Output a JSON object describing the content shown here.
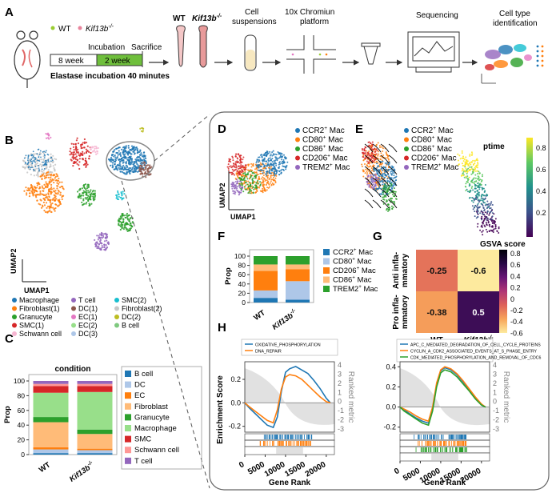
{
  "panel_labels": {
    "A": "A",
    "B": "B",
    "C": "C",
    "D": "D",
    "E": "E",
    "F": "F",
    "G": "G",
    "H": "H"
  },
  "panel_a": {
    "legend_wt": "WT",
    "legend_ko": "Kif13b",
    "ko_sup": "-/-",
    "week1": "8 week",
    "week2": "2 week",
    "incubation": "Incubation",
    "sacrifice": "Sacrifice",
    "elastase": "Elastase incubation 40 minutes",
    "step_wt": "WT",
    "step_ko": "Kif13b",
    "step_cell1": "Cell",
    "step_cell2": "suspensions",
    "step_10x1": "10x Chromiun",
    "step_10x2": "platform",
    "step_seq": "Sequencing",
    "step_id1": "Cell type",
    "step_id2": "identification",
    "colors": {
      "wt": "#9acd32",
      "ko": "#e8849c",
      "incubation": "#6fbf3c"
    }
  },
  "panel_b": {
    "xlabel": "UMAP1",
    "ylabel": "UMAP2",
    "legend": [
      {
        "label": "Macrophage",
        "color": "#1f77b4"
      },
      {
        "label": "T cell",
        "color": "#9467bd"
      },
      {
        "label": "SMC(2)",
        "color": "#17becf"
      },
      {
        "label": "Fibroblast(1)",
        "color": "#ff7f0e"
      },
      {
        "label": "DC(1)",
        "color": "#8c564b"
      },
      {
        "label": "Fibroblast(2)",
        "color": "#c7c7c7"
      },
      {
        "label": "Granucyte",
        "color": "#2ca02c"
      },
      {
        "label": "EC(1)",
        "color": "#e377c2"
      },
      {
        "label": "DC(2)",
        "color": "#bcbd22"
      },
      {
        "label": "SMC(1)",
        "color": "#d62728"
      },
      {
        "label": "EC(2)",
        "color": "#98df8a"
      },
      {
        "label": "B cell",
        "color": "#7fc97f"
      },
      {
        "label": "Schwann cell",
        "color": "#f7b6d2"
      },
      {
        "label": "DC(3)",
        "color": "#aec7e8"
      }
    ]
  },
  "chart_data": [
    {
      "type": "bar",
      "id": "C",
      "title": "condition",
      "categories": [
        "WT",
        "Kif13b"
      ],
      "ylabel": "Prop",
      "ylim": [
        0,
        100
      ],
      "yticks": [
        "0",
        "20",
        "40",
        "60",
        "80",
        "100"
      ],
      "series": [
        {
          "name": "B cell",
          "color": "#1f77b4",
          "values": [
            2,
            2
          ]
        },
        {
          "name": "DC",
          "color": "#aec7e8",
          "values": [
            5,
            4
          ]
        },
        {
          "name": "EC",
          "color": "#ff7f0e",
          "values": [
            3,
            2
          ]
        },
        {
          "name": "Fibroblast",
          "color": "#ffbb78",
          "values": [
            34,
            20
          ]
        },
        {
          "name": "Granucyte",
          "color": "#2ca02c",
          "values": [
            7,
            6
          ]
        },
        {
          "name": "Macrophage",
          "color": "#98df8a",
          "values": [
            33,
            51
          ]
        },
        {
          "name": "SMC",
          "color": "#d62728",
          "values": [
            9,
            8
          ]
        },
        {
          "name": "Schwann cell",
          "color": "#ff9896",
          "values": [
            3,
            3
          ]
        },
        {
          "name": "T cell",
          "color": "#9467bd",
          "values": [
            4,
            4
          ]
        }
      ]
    },
    {
      "type": "bar",
      "id": "F",
      "categories": [
        "WT",
        "Kif13b"
      ],
      "ylabel": "Prop",
      "ylim": [
        0,
        100
      ],
      "yticks": [
        "0",
        "20",
        "40",
        "60",
        "80",
        "100"
      ],
      "series": [
        {
          "name": "CCR2+ Mac",
          "color": "#1f77b4",
          "values": [
            10,
            6
          ]
        },
        {
          "name": "CD80+ Mac",
          "color": "#aec7e8",
          "values": [
            16,
            40
          ]
        },
        {
          "name": "CD206+ Mac",
          "color": "#ff7f0e",
          "values": [
            42,
            26
          ]
        },
        {
          "name": "CD86+ Mac",
          "color": "#ffbb78",
          "values": [
            14,
            10
          ]
        },
        {
          "name": "TREM2+ Mac",
          "color": "#2ca02c",
          "values": [
            18,
            18
          ]
        }
      ]
    },
    {
      "type": "heatmap",
      "id": "G",
      "title": "GSVA score",
      "columns": [
        "WT",
        "Kif13b"
      ],
      "rows": [
        "Anti inflammatory",
        "Pro inflammatory"
      ],
      "values": [
        [
          -0.25,
          -0.6
        ],
        [
          -0.38,
          0.5
        ]
      ],
      "cell_labels": [
        [
          "-0.25",
          "-0.6"
        ],
        [
          "-0.38",
          "0.5"
        ]
      ],
      "row_labels": [
        [
          "Anti infla-",
          "mmatory"
        ],
        [
          "Pro infla-",
          "mmatory"
        ]
      ],
      "colorbar_ticks": [
        "0.8",
        "0.6",
        "0.4",
        "0.2",
        "0",
        "-0.2",
        "-0.4",
        "-0.6"
      ],
      "range": [
        -0.6,
        0.9
      ]
    },
    {
      "type": "line",
      "id": "H1",
      "xlabel": "Gene Rank",
      "ylabel": "Enrichment Score",
      "y2label": "Ranked metric",
      "xlim": [
        0,
        22000
      ],
      "ylim": [
        -0.25,
        0.35
      ],
      "xticks": [
        "0",
        "5000",
        "10000",
        "15000",
        "20000"
      ],
      "yticks": [
        "-0.2",
        "0.0",
        "0.2"
      ],
      "y2ticks": [
        "4",
        "3",
        "2",
        "1",
        "0",
        "-1",
        "-2",
        "-3"
      ],
      "series": [
        {
          "name": "OXIDATIVE_PHOSPHORYLATION",
          "color": "#1f77b4",
          "x": [
            0,
            1000,
            2500,
            4000,
            5500,
            7000,
            8000,
            9000,
            10000,
            11000,
            12500,
            14000,
            15500,
            17000,
            18500,
            20000,
            21000
          ],
          "y": [
            0,
            -0.04,
            -0.09,
            -0.14,
            -0.19,
            -0.21,
            -0.12,
            0.1,
            0.26,
            0.29,
            0.31,
            0.28,
            0.25,
            0.19,
            0.12,
            0.04,
            0
          ]
        },
        {
          "name": "DNA_REPAIR",
          "color": "#ff7f0e",
          "x": [
            0,
            1000,
            2500,
            4000,
            5500,
            7000,
            8000,
            9000,
            10000,
            11000,
            12500,
            14000,
            15500,
            17000,
            18500,
            20000,
            21000
          ],
          "y": [
            0,
            -0.03,
            -0.07,
            -0.11,
            -0.15,
            -0.17,
            -0.06,
            0.12,
            0.22,
            0.24,
            0.23,
            0.2,
            0.15,
            0.1,
            0.05,
            0.01,
            0
          ]
        }
      ]
    },
    {
      "type": "line",
      "id": "H2",
      "xlabel": "Gene Rank",
      "ylabel": "",
      "y2label": "Ranked metric",
      "xlim": [
        0,
        22000
      ],
      "ylim": [
        -0.25,
        0.45
      ],
      "xticks": [
        "0",
        "5000",
        "10000",
        "15000",
        "20000"
      ],
      "yticks": [
        "-0.2",
        "0.0",
        "0.2",
        "0.4"
      ],
      "y2ticks": [
        "4",
        "3",
        "2",
        "1",
        "0",
        "-1",
        "-2",
        "-3"
      ],
      "series": [
        {
          "name": "APC_C_MEDIATED_DEGRADATION_OF_CELL_CYCLE_PROTEINS",
          "color": "#1f77b4",
          "x": [
            0,
            1000,
            2500,
            4000,
            5500,
            7000,
            8000,
            9000,
            10000,
            11000,
            12500,
            14000,
            15500,
            17000,
            18500,
            20000,
            21000
          ],
          "y": [
            0,
            -0.03,
            -0.07,
            -0.11,
            -0.14,
            -0.16,
            -0.02,
            0.22,
            0.36,
            0.39,
            0.37,
            0.32,
            0.25,
            0.17,
            0.09,
            0.02,
            0
          ]
        },
        {
          "name": "CYCLIN_A_CDK2_ASSOCIATED_EVENTS_AT_S_PHASE_ENTRY",
          "color": "#ff7f0e",
          "x": [
            0,
            1000,
            2500,
            4000,
            5500,
            7000,
            8000,
            9000,
            10000,
            11000,
            12500,
            14000,
            15500,
            17000,
            18500,
            20000,
            21000
          ],
          "y": [
            0,
            -0.02,
            -0.05,
            -0.09,
            -0.12,
            -0.14,
            0.0,
            0.24,
            0.37,
            0.4,
            0.38,
            0.33,
            0.26,
            0.18,
            0.1,
            0.03,
            0
          ]
        },
        {
          "name": "CDK_MEDIATED_PHOSPHORYLATION_AND_REMOVAL_OF_CDC6",
          "color": "#2ca02c",
          "x": [
            0,
            1000,
            2500,
            4000,
            5500,
            7000,
            8000,
            9000,
            10000,
            11000,
            12500,
            14000,
            15500,
            17000,
            18500,
            20000,
            21000
          ],
          "y": [
            0,
            -0.04,
            -0.08,
            -0.12,
            -0.16,
            -0.18,
            -0.04,
            0.2,
            0.34,
            0.37,
            0.35,
            0.3,
            0.23,
            0.16,
            0.08,
            0.02,
            0
          ]
        }
      ]
    }
  ],
  "panel_d": {
    "xlabel": "UMAP1",
    "ylabel": "UMAP2",
    "legend": [
      {
        "label": "CCR2",
        "sup": "+",
        "suffix": " Mac",
        "color": "#1f77b4"
      },
      {
        "label": "CD80",
        "sup": "+",
        "suffix": " Mac",
        "color": "#ff7f0e"
      },
      {
        "label": "CD86",
        "sup": "+",
        "suffix": " Mac",
        "color": "#2ca02c"
      },
      {
        "label": "CD206",
        "sup": "+",
        "suffix": " Mac",
        "color": "#d62728"
      },
      {
        "label": "TREM2",
        "sup": "+",
        "suffix": " Mac",
        "color": "#9467bd"
      }
    ]
  },
  "panel_e": {
    "ptime": "ptime",
    "colorbar_ticks": [
      "0.8",
      "0.6",
      "0.4",
      "0.2"
    ],
    "legend": [
      {
        "label": "CCR2",
        "sup": "+",
        "suffix": " Mac",
        "color": "#1f77b4"
      },
      {
        "label": "CD80",
        "sup": "+",
        "suffix": " Mac",
        "color": "#ff7f0e"
      },
      {
        "label": "CD86",
        "sup": "+",
        "suffix": " Mac",
        "color": "#2ca02c"
      },
      {
        "label": "CD206",
        "sup": "+",
        "suffix": " Mac",
        "color": "#d62728"
      },
      {
        "label": "TREM2",
        "sup": "+",
        "suffix": " Mac",
        "color": "#9467bd"
      }
    ]
  },
  "panel_f_legend": [
    {
      "label": "CCR2",
      "sup": "+",
      "suffix": " Mac",
      "color": "#1f77b4"
    },
    {
      "label": "CD80",
      "sup": "+",
      "suffix": " Mac",
      "color": "#aec7e8"
    },
    {
      "label": "CD206",
      "sup": "+",
      "suffix": " Mac",
      "color": "#ff7f0e"
    },
    {
      "label": "CD86",
      "sup": "+",
      "suffix": " Mac",
      "color": "#ffbb78"
    },
    {
      "label": "TREM2",
      "sup": "+",
      "suffix": " Mac",
      "color": "#2ca02c"
    }
  ],
  "ko_sup": "-/-"
}
